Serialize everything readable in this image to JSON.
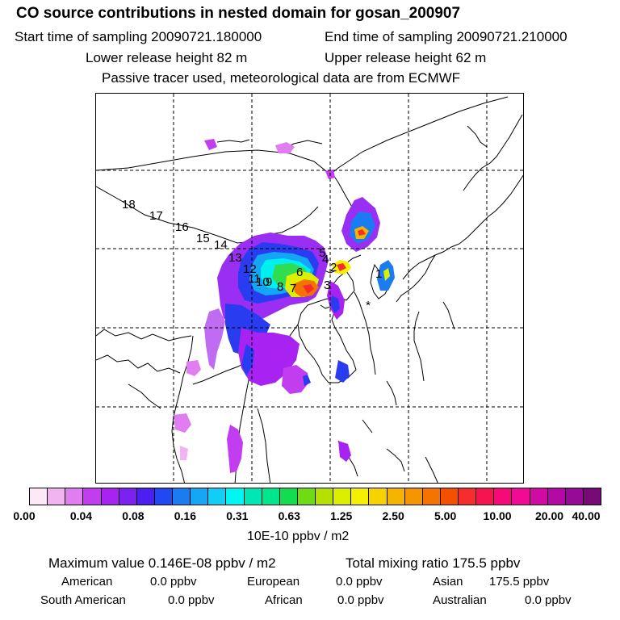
{
  "header": {
    "title": "CO  source contributions in nested domain for gosan_200907",
    "start_label": "Start time of sampling 20090721.180000",
    "end_label": "End time of sampling 20090721.210000",
    "lower_height": "Lower release height   82 m",
    "upper_height": "Upper release height   62 m",
    "tracer_note": "Passive tracer used, meteorological data are from ECMWF"
  },
  "map": {
    "receptor_marker": "*",
    "trajectory_labels": [
      "1",
      "2",
      "3",
      "4",
      "5",
      "6",
      "7",
      "8",
      "9",
      "10",
      "11",
      "12",
      "13",
      "14",
      "15",
      "16",
      "17",
      "18"
    ]
  },
  "colorbar": {
    "tick_labels": [
      "0.00",
      "0.04",
      "0.08",
      "0.16",
      "0.31",
      "0.63",
      "1.25",
      "2.50",
      "5.00",
      "10.00",
      "20.00",
      "40.00"
    ],
    "unit": "10E-10 ppbv / m2",
    "colors": [
      "#fde8f8",
      "#f1b4f1",
      "#e07df0",
      "#c23cf0",
      "#a822f2",
      "#7c22f0",
      "#4c1ef0",
      "#2248f2",
      "#1b7cf2",
      "#15a6f5",
      "#12cdf5",
      "#00f5f5",
      "#00e6b4",
      "#00e68c",
      "#14dc50",
      "#6edc14",
      "#b4e100",
      "#dcef00",
      "#f5f000",
      "#f5d200",
      "#f5b400",
      "#f59600",
      "#f57300",
      "#f55000",
      "#f52d2d",
      "#f51450",
      "#f50a78",
      "#f00a96",
      "#d20aa5",
      "#b40aa5",
      "#960a96",
      "#780a78"
    ]
  },
  "summary": {
    "max_value": "Maximum value  0.146E-08 ppbv / m2",
    "total_mixing": "Total mixing ratio      175.5 ppbv",
    "american_label": "American",
    "american_value": "0.0 ppbv",
    "european_label": "European",
    "european_value": "0.0 ppbv",
    "asian_label": "Asian",
    "asian_value": "175.5 ppbv",
    "south_american_label": "South American",
    "south_american_value": "0.0 ppbv",
    "african_label": "African",
    "african_value": "0.0 ppbv",
    "australian_label": "Australian",
    "australian_value": "0.0 ppbv"
  }
}
